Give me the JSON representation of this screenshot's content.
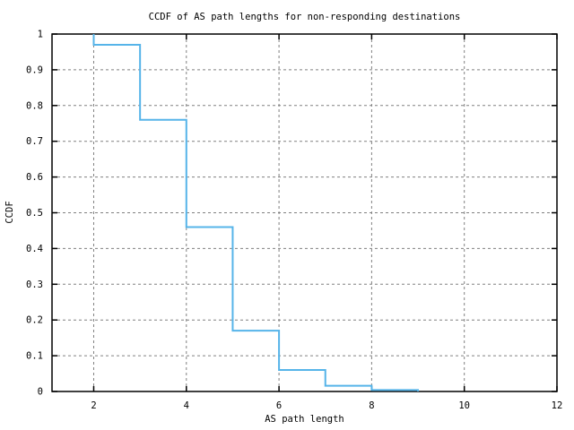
{
  "chart_data": {
    "type": "line",
    "style": "step-ccdf",
    "title": "CCDF of AS path lengths for non-responding destinations",
    "xlabel": "AS path length",
    "ylabel": "CCDF",
    "xlim": [
      1.1,
      12
    ],
    "ylim": [
      0,
      1
    ],
    "xticks": [
      2,
      4,
      6,
      8,
      10,
      12
    ],
    "xtick_labels": [
      "2",
      "4",
      "6",
      "8",
      "10",
      "12"
    ],
    "yticks": [
      0,
      0.1,
      0.2,
      0.3,
      0.4,
      0.5,
      0.6,
      0.7,
      0.8,
      0.9,
      1
    ],
    "ytick_labels": [
      "0",
      "0.1",
      "0.2",
      "0.3",
      "0.4",
      "0.5",
      "0.6",
      "0.7",
      "0.8",
      "0.9",
      "1"
    ],
    "grid": true,
    "legend": "none",
    "series": [
      {
        "name": "CCDF of AS path length",
        "color": "#56b4e9",
        "start_point": [
          2,
          1.0
        ],
        "x": [
          2,
          3,
          4,
          5,
          6,
          7,
          8,
          9
        ],
        "y": [
          0.97,
          0.76,
          0.46,
          0.17,
          0.06,
          0.016,
          0.004,
          0
        ]
      }
    ]
  },
  "colors": {
    "background": "#ffffff",
    "border": "#000000",
    "grid": "#808080",
    "text": "#000000",
    "line": "#56b4e9"
  }
}
